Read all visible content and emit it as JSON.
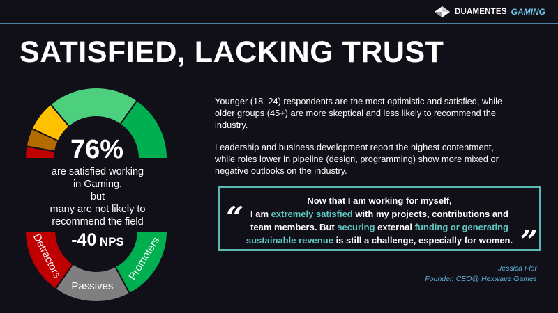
{
  "header": {
    "brand_text": "DUAMENTES",
    "brand_accent": "GAMING",
    "accent_color": "#6fc6e8",
    "line_color": "#4f7fa3",
    "logo_icon": "diamond-icon"
  },
  "title": "SATISFIED, LACKING TRUST",
  "satisfaction": {
    "percent_label": "76%",
    "percent_value": 76,
    "lines": [
      "are satisfied working",
      "in Gaming,",
      "but",
      "many are not likely to",
      "recommend the field"
    ],
    "segment_colors": [
      "#c00000",
      "#b36b00",
      "#ffc000",
      "#4dd07e",
      "#00b050"
    ]
  },
  "nps": {
    "value": "-40",
    "unit": "NPS",
    "segments": [
      {
        "label": "Detractors",
        "color": "#c00000"
      },
      {
        "label": "Passives",
        "color": "#7f7f7f"
      },
      {
        "label": "Promoters",
        "color": "#00b050"
      }
    ]
  },
  "paragraphs": [
    "Younger (18–24) respondents are the most optimistic and satisfied, while older groups (45+) are more skeptical and less likely to recommend the industry.",
    "Leadership and business development report the highest contentment, while roles lower in pipeline (design, programming) show more mixed or negative outlooks on the industry."
  ],
  "quote": {
    "open_mark": "“",
    "close_mark": "”",
    "border_color": "#5cb8b2",
    "highlight_color": "#5ec7c1",
    "line1": "Now that I am working for myself,",
    "p1": "I am ",
    "h1": "extremely satisfied",
    "p2": " with my projects, contributions and team members. But ",
    "h2": "securing",
    "p3": " external ",
    "h3": "funding or generating sustainable revenue",
    "p4": " is still a challenge, especially for women."
  },
  "attribution": {
    "name": "Jessica Flor",
    "role": "Founder, CEO@ Hexwave Games"
  }
}
